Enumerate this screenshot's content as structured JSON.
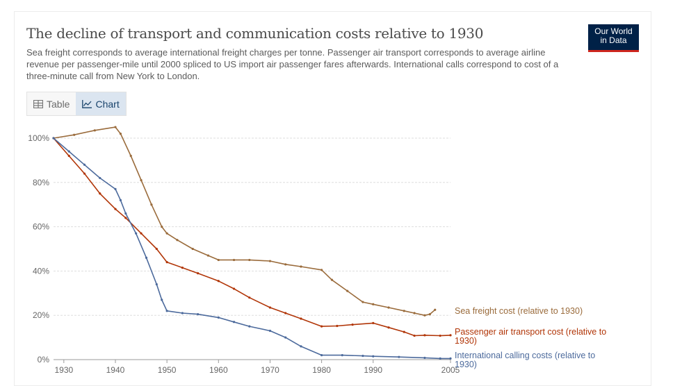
{
  "header": {
    "title": "The decline of transport and communication costs relative to 1930",
    "subtitle": "Sea freight corresponds to average international freight charges per tonne. Passenger air transport corresponds to average airline revenue per passenger-mile until 2000 spliced to US import air passenger fares afterwards. International calls correspond to cost of a three-minute call from New York to London.",
    "logo_line1": "Our World",
    "logo_line2": "in Data"
  },
  "tabs": {
    "table_label": "Table",
    "chart_label": "Chart",
    "active": "chart"
  },
  "colors": {
    "sea": "#9a6b3b",
    "air": "#b13507",
    "calls": "#4c6a9c",
    "grid": "#dddddd",
    "logo_bg": "#002147",
    "logo_accent": "#ce261e"
  },
  "chart_data": {
    "type": "line",
    "xlim": [
      1928,
      2005
    ],
    "ylim": [
      0,
      100
    ],
    "x_ticks": [
      "1930",
      "1940",
      "1950",
      "1960",
      "1970",
      "1980",
      "1990",
      "2005"
    ],
    "x_tick_values": [
      1930,
      1940,
      1950,
      1960,
      1970,
      1980,
      1990,
      2005
    ],
    "y_ticks": [
      "0%",
      "20%",
      "40%",
      "60%",
      "80%",
      "100%"
    ],
    "y_tick_values": [
      0,
      20,
      40,
      60,
      80,
      100
    ],
    "grid": "horizontal",
    "series": [
      {
        "name": "Sea freight cost (relative to 1930)",
        "key": "sea",
        "points": [
          [
            1928,
            100
          ],
          [
            1932,
            101.5
          ],
          [
            1936,
            103.5
          ],
          [
            1940,
            105
          ],
          [
            1941,
            102
          ],
          [
            1943,
            92
          ],
          [
            1945,
            81
          ],
          [
            1947,
            70
          ],
          [
            1949,
            60
          ],
          [
            1950,
            57
          ],
          [
            1952,
            54
          ],
          [
            1955,
            50
          ],
          [
            1958,
            47
          ],
          [
            1960,
            45
          ],
          [
            1963,
            45
          ],
          [
            1966,
            45
          ],
          [
            1970,
            44.5
          ],
          [
            1973,
            43
          ],
          [
            1976,
            42
          ],
          [
            1980,
            40.5
          ],
          [
            1982,
            36
          ],
          [
            1985,
            31
          ],
          [
            1988,
            26
          ],
          [
            1990,
            25
          ],
          [
            1993,
            23.5
          ],
          [
            1996,
            22
          ],
          [
            1998,
            21
          ],
          [
            2000,
            20
          ],
          [
            2001,
            20.5
          ],
          [
            2002,
            22.5
          ]
        ]
      },
      {
        "name": "Passenger air transport cost (relative to 1930)",
        "key": "air",
        "points": [
          [
            1928,
            100
          ],
          [
            1931,
            92
          ],
          [
            1934,
            84
          ],
          [
            1937,
            75
          ],
          [
            1940,
            68
          ],
          [
            1942,
            64
          ],
          [
            1945,
            57
          ],
          [
            1948,
            50
          ],
          [
            1950,
            44
          ],
          [
            1953,
            41.5
          ],
          [
            1956,
            39
          ],
          [
            1960,
            35.5
          ],
          [
            1963,
            32
          ],
          [
            1966,
            28
          ],
          [
            1970,
            23.5
          ],
          [
            1973,
            21
          ],
          [
            1976,
            18.5
          ],
          [
            1980,
            15
          ],
          [
            1983,
            15.2
          ],
          [
            1986,
            15.8
          ],
          [
            1990,
            16.5
          ],
          [
            1993,
            14.5
          ],
          [
            1996,
            12.5
          ],
          [
            1998,
            10.8
          ],
          [
            2000,
            11
          ],
          [
            2003,
            10.8
          ],
          [
            2005,
            11
          ]
        ]
      },
      {
        "name": "International calling costs (relative to 1930)",
        "key": "calls",
        "points": [
          [
            1928,
            100
          ],
          [
            1931,
            94
          ],
          [
            1934,
            88
          ],
          [
            1937,
            82
          ],
          [
            1940,
            77
          ],
          [
            1941,
            72
          ],
          [
            1942,
            66
          ],
          [
            1944,
            57
          ],
          [
            1946,
            46
          ],
          [
            1948,
            34
          ],
          [
            1949,
            27
          ],
          [
            1950,
            22
          ],
          [
            1953,
            21
          ],
          [
            1956,
            20.5
          ],
          [
            1960,
            19
          ],
          [
            1963,
            17
          ],
          [
            1966,
            15
          ],
          [
            1970,
            13
          ],
          [
            1973,
            10
          ],
          [
            1976,
            6
          ],
          [
            1980,
            2
          ],
          [
            1984,
            2
          ],
          [
            1988,
            1.7
          ],
          [
            1990,
            1.5
          ],
          [
            1995,
            1.2
          ],
          [
            2000,
            0.8
          ],
          [
            2003,
            0.5
          ],
          [
            2005,
            0.5
          ]
        ]
      }
    ],
    "series_labels": [
      {
        "key": "sea",
        "lines": [
          "Sea freight cost (relative to 1930)"
        ]
      },
      {
        "key": "air",
        "lines": [
          "Passenger air transport cost (relative to",
          "1930)"
        ]
      },
      {
        "key": "calls",
        "lines": [
          "International calling costs (relative to",
          "1930)"
        ]
      }
    ]
  }
}
